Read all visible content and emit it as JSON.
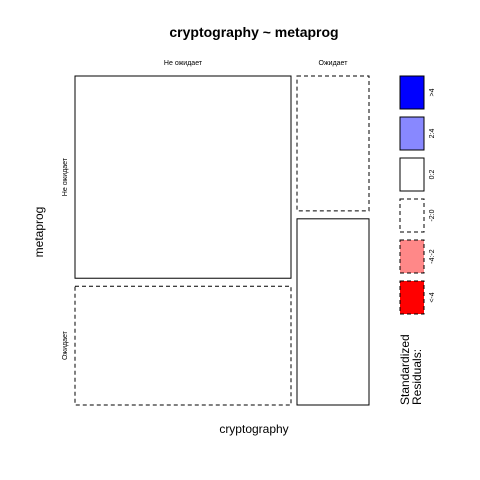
{
  "chart_data": {
    "type": "mosaic",
    "title": "cryptography ~ metaprog",
    "xlabel": "cryptography",
    "ylabel": "metaprog",
    "x_categories": [
      "Не ожидает",
      "Ожидает"
    ],
    "y_categories": [
      "Не ожидает",
      "Ожидает"
    ],
    "x_proportions": [
      0.75,
      0.25
    ],
    "y_proportions_by_column": [
      [
        0.63,
        0.37
      ],
      [
        0.42,
        0.58
      ]
    ],
    "cells": [
      {
        "x": "Не ожидает",
        "y": "Не ожидает",
        "residual_class": "0:2",
        "fill": "#ffffff",
        "border": "solid"
      },
      {
        "x": "Не ожидает",
        "y": "Ожидает",
        "residual_class": "-2:0",
        "fill": "#ffffff",
        "border": "dashed"
      },
      {
        "x": "Ожидает",
        "y": "Не ожидает",
        "residual_class": "-2:0",
        "fill": "#ffffff",
        "border": "dashed"
      },
      {
        "x": "Ожидает",
        "y": "Ожидает",
        "residual_class": "0:2",
        "fill": "#ffffff",
        "border": "solid"
      }
    ],
    "legend": {
      "title_lines": [
        "Standardized",
        "Residuals:"
      ],
      "entries": [
        {
          "label": ">4",
          "fill": "#0000ff",
          "border": "solid"
        },
        {
          "label": "2:4",
          "fill": "#8888ff",
          "border": "solid"
        },
        {
          "label": "0:2",
          "fill": "#ffffff",
          "border": "solid"
        },
        {
          "label": "-2:0",
          "fill": "#ffffff",
          "border": "dashed"
        },
        {
          "label": "-4:-2",
          "fill": "#ff8888",
          "border": "dashed"
        },
        {
          "label": "<-4",
          "fill": "#ff0000",
          "border": "dashed"
        }
      ]
    }
  }
}
